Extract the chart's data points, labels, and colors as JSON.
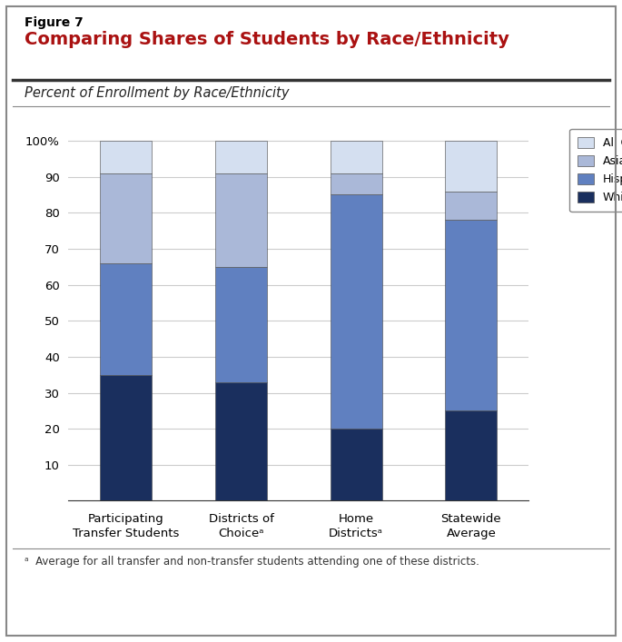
{
  "figure_label": "Figure 7",
  "title": "Comparing Shares of Students by Race/Ethnicity",
  "subtitle": "Percent of Enrollment by Race/Ethnicity",
  "footnote": "ᵃ  Average for all transfer and non-transfer students attending one of these districts.",
  "categories": [
    "Participating\nTransfer Students",
    "Districts of\nChoiceᵃ",
    "Home\nDistrictsᵃ",
    "Statewide\nAverage"
  ],
  "white": [
    35,
    33,
    20,
    25
  ],
  "hispanic_latino": [
    31,
    32,
    65,
    53
  ],
  "asian": [
    25,
    26,
    6,
    8
  ],
  "all_other": [
    9,
    9,
    9,
    14
  ],
  "colors": {
    "white": "#1a2f5e",
    "hispanic_latino": "#6080c0",
    "asian": "#aab8d8",
    "all_other": "#d4dff0"
  },
  "yticks": [
    10,
    20,
    30,
    40,
    50,
    60,
    70,
    80,
    90,
    100
  ],
  "background_color": "#ffffff",
  "title_color": "#aa1111",
  "grid_color": "#cccccc",
  "bar_width": 0.45
}
